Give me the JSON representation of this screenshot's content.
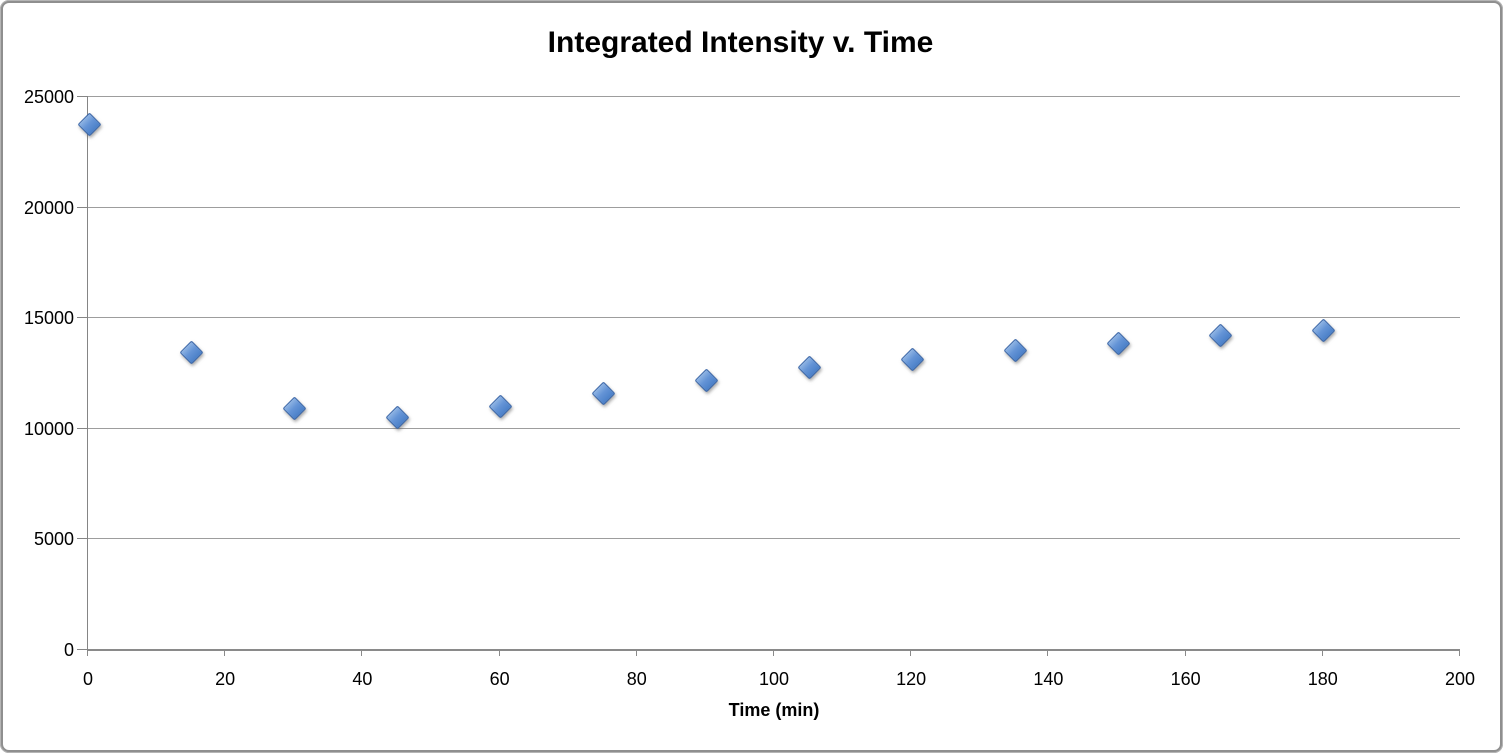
{
  "chart_data": {
    "type": "scatter",
    "title": "Integrated Intensity v. Time",
    "xlabel": "Time (min)",
    "ylabel": "",
    "x": [
      0,
      15,
      30,
      45,
      60,
      75,
      90,
      105,
      120,
      135,
      150,
      165,
      180
    ],
    "values": [
      23800,
      13500,
      10950,
      10550,
      11050,
      11650,
      12250,
      12800,
      13200,
      13600,
      13900,
      14250,
      14500
    ],
    "xlim": [
      0,
      200
    ],
    "ylim": [
      0,
      25000
    ],
    "xticks": [
      0,
      20,
      40,
      60,
      80,
      100,
      120,
      140,
      160,
      180,
      200
    ],
    "yticks": [
      0,
      5000,
      10000,
      15000,
      20000,
      25000
    ],
    "grid": "horizontal-only",
    "legend_position": "none",
    "marker_shape": "diamond",
    "marker_fill": "#5b8bd0",
    "marker_border": "#3a66a8",
    "gridline_color": "#9d9d9d",
    "axis_color": "#8a8a8a",
    "text_color": "#000000",
    "background": "#ffffff"
  }
}
